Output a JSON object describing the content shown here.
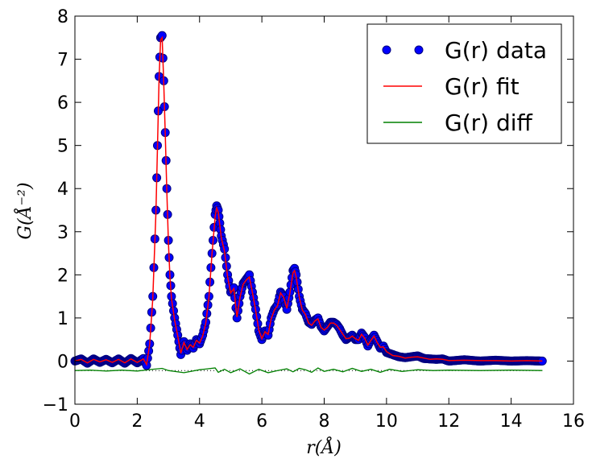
{
  "chart_data": {
    "type": "line",
    "title": "",
    "xlabel": "r(Å)",
    "ylabel": "G(Å⁻²)",
    "xlim": [
      0,
      16
    ],
    "ylim": [
      -1,
      8
    ],
    "x_ticks": [
      "0",
      "2",
      "4",
      "6",
      "8",
      "10",
      "12",
      "14",
      "16"
    ],
    "y_ticks": [
      "−1",
      "0",
      "1",
      "2",
      "3",
      "4",
      "5",
      "6",
      "7",
      "8"
    ],
    "grid": false,
    "legend_position": "top-right",
    "colors": {
      "data": "#0000ff",
      "data_edge": "#000080",
      "fit": "#ff0000",
      "diff": "#008000",
      "zero": "#000000"
    },
    "diff_offset": -0.22,
    "series": [
      {
        "name": "G(r) data",
        "style": "markers",
        "x": [
          0.0,
          0.2,
          0.4,
          0.6,
          0.8,
          1.0,
          1.2,
          1.4,
          1.6,
          1.8,
          2.0,
          2.2,
          2.3,
          2.4,
          2.5,
          2.6,
          2.65,
          2.7,
          2.75,
          2.8,
          2.85,
          2.9,
          2.95,
          3.0,
          3.05,
          3.1,
          3.2,
          3.3,
          3.4,
          3.5,
          3.6,
          3.7,
          3.8,
          3.9,
          4.0,
          4.1,
          4.2,
          4.3,
          4.4,
          4.5,
          4.55,
          4.6,
          4.65,
          4.7,
          4.8,
          4.9,
          5.0,
          5.1,
          5.2,
          5.3,
          5.4,
          5.5,
          5.6,
          5.7,
          5.8,
          5.9,
          6.0,
          6.1,
          6.2,
          6.3,
          6.4,
          6.5,
          6.6,
          6.7,
          6.8,
          6.9,
          7.0,
          7.05,
          7.1,
          7.2,
          7.3,
          7.4,
          7.5,
          7.6,
          7.7,
          7.8,
          7.9,
          8.0,
          8.1,
          8.2,
          8.3,
          8.4,
          8.5,
          8.6,
          8.7,
          8.8,
          8.9,
          9.0,
          9.1,
          9.2,
          9.3,
          9.4,
          9.5,
          9.6,
          9.7,
          9.8,
          9.9,
          10.0,
          10.2,
          10.4,
          10.6,
          10.8,
          11.0,
          11.2,
          11.4,
          11.6,
          11.8,
          12.0,
          12.5,
          13.0,
          13.5,
          14.0,
          14.5,
          15.0
        ],
        "y": [
          0.0,
          0.05,
          -0.05,
          0.05,
          -0.03,
          0.04,
          -0.04,
          0.05,
          -0.05,
          0.06,
          -0.04,
          0.06,
          -0.1,
          0.4,
          1.5,
          3.5,
          5.0,
          6.6,
          7.5,
          7.55,
          6.5,
          5.3,
          4.0,
          2.8,
          2.0,
          1.5,
          1.0,
          0.6,
          0.15,
          0.45,
          0.25,
          0.4,
          0.3,
          0.5,
          0.4,
          0.6,
          0.9,
          1.5,
          2.5,
          3.4,
          3.6,
          3.5,
          3.2,
          2.9,
          2.6,
          2.0,
          1.6,
          1.7,
          1.0,
          1.5,
          1.8,
          1.9,
          2.0,
          1.6,
          1.2,
          0.7,
          0.5,
          0.7,
          0.6,
          1.0,
          1.2,
          1.3,
          1.6,
          1.5,
          1.2,
          1.6,
          2.1,
          2.15,
          2.0,
          1.5,
          1.2,
          1.1,
          0.9,
          0.85,
          0.95,
          1.0,
          0.8,
          0.7,
          0.8,
          0.9,
          0.9,
          0.85,
          0.75,
          0.6,
          0.5,
          0.55,
          0.6,
          0.5,
          0.5,
          0.65,
          0.55,
          0.35,
          0.5,
          0.6,
          0.45,
          0.3,
          0.35,
          0.2,
          0.15,
          0.1,
          0.08,
          0.1,
          0.12,
          0.06,
          0.05,
          0.04,
          0.05,
          0.0,
          0.03,
          0.0,
          0.02,
          0.0,
          0.01,
          0.0
        ]
      },
      {
        "name": "G(r) fit",
        "style": "line",
        "x": [
          0.0,
          0.2,
          0.4,
          0.6,
          0.8,
          1.0,
          1.2,
          1.4,
          1.6,
          1.8,
          2.0,
          2.2,
          2.3,
          2.4,
          2.5,
          2.6,
          2.65,
          2.7,
          2.75,
          2.8,
          2.85,
          2.9,
          2.95,
          3.0,
          3.05,
          3.1,
          3.2,
          3.3,
          3.4,
          3.5,
          3.6,
          3.7,
          3.8,
          3.9,
          4.0,
          4.1,
          4.2,
          4.3,
          4.4,
          4.5,
          4.55,
          4.6,
          4.65,
          4.7,
          4.8,
          4.9,
          5.0,
          5.1,
          5.2,
          5.3,
          5.4,
          5.5,
          5.6,
          5.7,
          5.8,
          5.9,
          6.0,
          6.1,
          6.2,
          6.3,
          6.4,
          6.5,
          6.6,
          6.7,
          6.8,
          6.9,
          7.0,
          7.05,
          7.1,
          7.2,
          7.3,
          7.4,
          7.5,
          7.6,
          7.7,
          7.8,
          7.9,
          8.0,
          8.1,
          8.2,
          8.3,
          8.4,
          8.5,
          8.6,
          8.7,
          8.8,
          8.9,
          9.0,
          9.1,
          9.2,
          9.3,
          9.4,
          9.5,
          9.6,
          9.7,
          9.8,
          9.9,
          10.0,
          10.2,
          10.4,
          10.6,
          10.8,
          11.0,
          11.2,
          11.4,
          11.6,
          11.8,
          12.0,
          12.5,
          13.0,
          13.5,
          14.0,
          14.5,
          15.0
        ],
        "y": [
          0.0,
          0.04,
          -0.04,
          0.04,
          -0.02,
          0.03,
          -0.03,
          0.04,
          -0.04,
          0.05,
          -0.03,
          0.05,
          -0.08,
          0.38,
          1.45,
          3.45,
          4.95,
          6.55,
          7.45,
          7.5,
          6.45,
          5.25,
          3.95,
          2.75,
          1.95,
          1.45,
          0.95,
          0.58,
          0.18,
          0.43,
          0.27,
          0.38,
          0.32,
          0.48,
          0.42,
          0.58,
          0.88,
          1.48,
          2.48,
          3.35,
          3.55,
          3.45,
          3.15,
          2.85,
          2.55,
          1.95,
          1.58,
          1.68,
          1.02,
          1.48,
          1.78,
          1.88,
          1.95,
          1.58,
          1.18,
          0.72,
          0.52,
          0.68,
          0.62,
          0.98,
          1.18,
          1.28,
          1.58,
          1.48,
          1.22,
          1.58,
          2.05,
          2.1,
          1.95,
          1.48,
          1.18,
          1.08,
          0.88,
          0.83,
          0.93,
          0.98,
          0.78,
          0.72,
          0.78,
          0.88,
          0.88,
          0.83,
          0.73,
          0.62,
          0.52,
          0.53,
          0.58,
          0.52,
          0.48,
          0.62,
          0.53,
          0.37,
          0.48,
          0.58,
          0.43,
          0.32,
          0.33,
          0.22,
          0.13,
          0.11,
          0.07,
          0.09,
          0.1,
          0.07,
          0.04,
          0.05,
          0.04,
          0.01,
          0.02,
          0.01,
          0.01,
          0.0,
          0.01,
          0.0
        ]
      },
      {
        "name": "G(r) diff",
        "style": "line",
        "x": [
          0.0,
          0.5,
          1.0,
          1.5,
          2.0,
          2.5,
          2.8,
          3.0,
          3.5,
          4.0,
          4.5,
          4.6,
          4.8,
          5.0,
          5.3,
          5.6,
          5.9,
          6.2,
          6.5,
          6.8,
          7.0,
          7.2,
          7.4,
          7.6,
          7.8,
          8.0,
          8.3,
          8.6,
          8.9,
          9.2,
          9.5,
          9.8,
          10.1,
          10.5,
          11.0,
          11.5,
          12.0,
          13.0,
          14.0,
          15.0
        ],
        "y": [
          0.0,
          0.01,
          -0.01,
          0.01,
          -0.01,
          0.03,
          0.05,
          0.0,
          -0.05,
          0.02,
          0.06,
          -0.04,
          0.03,
          -0.05,
          0.04,
          -0.08,
          0.03,
          -0.05,
          0.0,
          0.04,
          -0.03,
          0.05,
          0.02,
          -0.04,
          0.06,
          -0.02,
          0.03,
          -0.03,
          0.05,
          -0.02,
          0.03,
          -0.04,
          0.03,
          -0.02,
          0.02,
          0.0,
          0.01,
          0.0,
          0.01,
          0.0
        ]
      }
    ]
  }
}
